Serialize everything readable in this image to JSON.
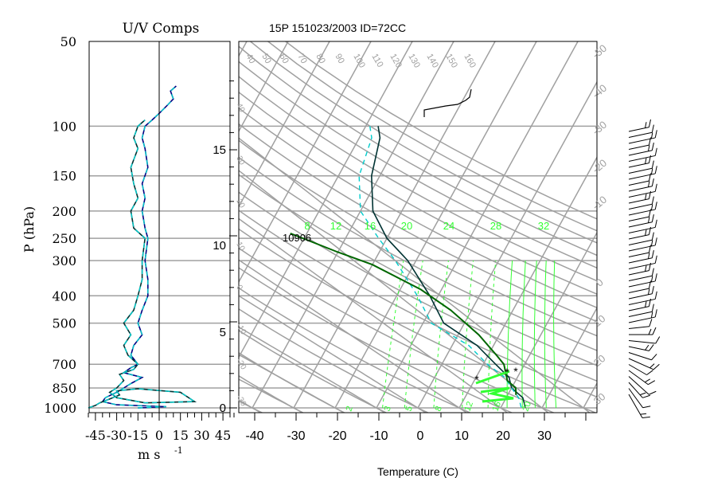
{
  "header": {
    "uv_title": "U/V Comps",
    "skewt_title": "15P 151023/2003 ID=72CC",
    "pressure_axis_label": "P (hPa)",
    "uv_x_axis_label": "m s",
    "uv_x_axis_exponent": "-1",
    "temperature_axis_label": "Temperature (C)",
    "height_marker_label": "10906"
  },
  "colors": {
    "frame": "#000000",
    "grid": "#a0a0a0",
    "mixing_ratio": "#33ff33",
    "parcel": "#006600",
    "temperature": "#003333",
    "dewpoint": "#00cccc",
    "u_component": "#000080",
    "wind_barb": "#000000"
  },
  "pressure_ticks": [
    "50",
    "100",
    "150",
    "200",
    "250",
    "300",
    "400",
    "500",
    "700",
    "850",
    "1000"
  ],
  "height_ticks": [
    "0",
    "5",
    "10",
    "15"
  ],
  "dry_adiabat_labels": [
    "40",
    "50",
    "60",
    "70",
    "80",
    "90",
    "100",
    "110",
    "120",
    "130",
    "140",
    "150",
    "160"
  ],
  "left_adiabat_labels": [
    "40",
    "30",
    "20",
    "10",
    "0",
    "-10",
    "-20",
    "-30"
  ],
  "moist_adiabat_labels": [
    "-50",
    "-40",
    "-30",
    "-20",
    "-10",
    "0",
    "10",
    "20",
    "30"
  ],
  "mixing_ratio_top_labels": [
    "8",
    "12",
    "16",
    "20",
    "24",
    "28",
    "32"
  ],
  "mixing_ratio_bottom_labels": [
    "2",
    "3",
    "5",
    "8",
    "12",
    "16",
    "20"
  ],
  "chart_data": [
    {
      "type": "line",
      "name": "uv_components",
      "title": "U/V Comps",
      "xlabel": "m s -1",
      "ylabel": "P (hPa)",
      "xlim": [
        -50,
        50
      ],
      "ylim": [
        1000,
        50
      ],
      "y_scale": "log",
      "x_ticks": [
        "-45",
        "-30",
        "-15",
        "0",
        "15",
        "30",
        "45"
      ],
      "grid": true,
      "series": [
        {
          "key": "u",
          "points": [
            [
              -15,
              1000
            ],
            [
              5,
              990
            ],
            [
              -30,
              975
            ],
            [
              -40,
              950
            ],
            [
              -38,
              920
            ],
            [
              -30,
              880
            ],
            [
              -25,
              850
            ],
            [
              -20,
              820
            ],
            [
              -12,
              780
            ],
            [
              -25,
              750
            ],
            [
              -20,
              720
            ],
            [
              -15,
              700
            ],
            [
              -20,
              650
            ],
            [
              -18,
              600
            ],
            [
              -12,
              550
            ],
            [
              -15,
              500
            ],
            [
              -12,
              450
            ],
            [
              -8,
              400
            ],
            [
              -8,
              350
            ],
            [
              -10,
              300
            ],
            [
              -8,
              250
            ],
            [
              -10,
              230
            ],
            [
              -12,
              200
            ],
            [
              -10,
              180
            ],
            [
              -12,
              160
            ],
            [
              -8,
              140
            ],
            [
              -10,
              120
            ],
            [
              -12,
              110
            ],
            [
              -10,
              100
            ],
            [
              -5,
              95
            ],
            [
              0,
              90
            ],
            [
              5,
              85
            ],
            [
              10,
              80
            ],
            [
              8,
              75
            ],
            [
              12,
              72
            ]
          ]
        },
        {
          "key": "v",
          "points": [
            [
              -50,
              1000
            ],
            [
              -45,
              980
            ],
            [
              -42,
              960
            ],
            [
              -35,
              930
            ],
            [
              -28,
              900
            ],
            [
              -30,
              870
            ],
            [
              -15,
              855
            ],
            [
              15,
              880
            ],
            [
              25,
              950
            ],
            [
              -10,
              960
            ],
            [
              -30,
              920
            ],
            [
              -35,
              880
            ],
            [
              -30,
              850
            ],
            [
              -25,
              800
            ],
            [
              -28,
              760
            ],
            [
              -18,
              730
            ],
            [
              -15,
              700
            ],
            [
              -22,
              650
            ],
            [
              -25,
              600
            ],
            [
              -20,
              550
            ],
            [
              -25,
              500
            ],
            [
              -18,
              450
            ],
            [
              -15,
              400
            ],
            [
              -12,
              350
            ],
            [
              -12,
              300
            ],
            [
              -10,
              250
            ],
            [
              -18,
              230
            ],
            [
              -20,
              200
            ],
            [
              -15,
              180
            ],
            [
              -18,
              160
            ],
            [
              -20,
              140
            ],
            [
              -15,
              120
            ],
            [
              -18,
              110
            ],
            [
              -15,
              100
            ],
            [
              -10,
              95
            ]
          ]
        }
      ]
    },
    {
      "type": "line",
      "name": "skew_t",
      "title": "15P 151023/2003 ID=72CC",
      "xlabel": "Temperature (C)",
      "ylabel": "P (hPa)",
      "xlim": [
        -45,
        40
      ],
      "x_ticks": [
        "-40",
        "-30",
        "-20",
        "-10",
        "0",
        "10",
        "20",
        "30"
      ],
      "series": [
        {
          "key": "temperature",
          "points": [
            [
              -47,
              100
            ],
            [
              -45,
              110
            ],
            [
              -42,
              150
            ],
            [
              -37,
              200
            ],
            [
              -30,
              250
            ],
            [
              -22,
              300
            ],
            [
              -12,
              400
            ],
            [
              -5,
              500
            ],
            [
              6,
              600
            ],
            [
              13,
              700
            ],
            [
              18,
              780
            ],
            [
              20,
              850
            ],
            [
              24,
              920
            ],
            [
              26,
              1000
            ]
          ]
        },
        {
          "key": "dewpoint",
          "points": [
            [
              -49,
              100
            ],
            [
              -47,
              110
            ],
            [
              -45,
              150
            ],
            [
              -40,
              200
            ],
            [
              -32,
              250
            ],
            [
              -25,
              300
            ],
            [
              -15,
              400
            ],
            [
              -8,
              500
            ],
            [
              4,
              600
            ],
            [
              11,
              700
            ],
            [
              17,
              780
            ],
            [
              20,
              850
            ],
            [
              23,
              920
            ],
            [
              25,
              1000
            ]
          ]
        },
        {
          "key": "parcel",
          "points": [
            [
              -54,
              240
            ],
            [
              -40,
              280
            ],
            [
              -30,
              310
            ],
            [
              -15,
              380
            ],
            [
              -5,
              450
            ],
            [
              5,
              550
            ],
            [
              12,
              650
            ],
            [
              15,
              700
            ],
            [
              18,
              800
            ],
            [
              21,
              850
            ],
            [
              22,
              900
            ]
          ]
        }
      ],
      "wind_barb_count": 45
    }
  ]
}
